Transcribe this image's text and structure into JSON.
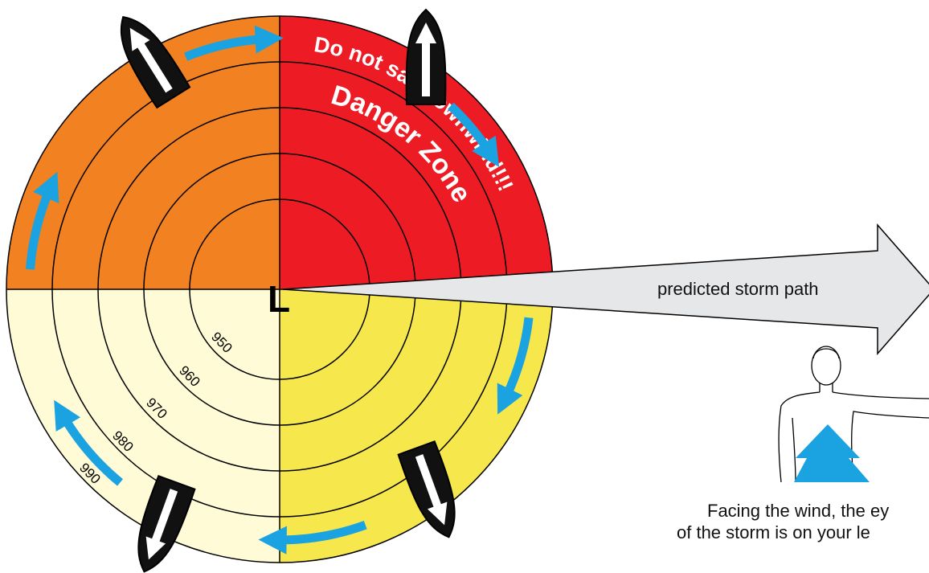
{
  "center_label": "L",
  "zone": {
    "warning": "Do not sail downwind!!!",
    "title": "Danger Zone"
  },
  "isobars": [
    "950",
    "960",
    "970",
    "980",
    "990"
  ],
  "storm_path": "predicted storm path",
  "caption": [
    "Facing the wind, the ey",
    "of the storm is on your le"
  ]
}
